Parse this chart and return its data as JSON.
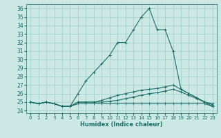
{
  "xlabel": "Humidex (Indice chaleur)",
  "xlim": [
    -0.5,
    23.5
  ],
  "ylim": [
    23.7,
    36.5
  ],
  "yticks": [
    24,
    25,
    26,
    27,
    28,
    29,
    30,
    31,
    32,
    33,
    34,
    35,
    36
  ],
  "xticks": [
    0,
    1,
    2,
    3,
    4,
    5,
    6,
    7,
    8,
    9,
    10,
    11,
    12,
    13,
    14,
    15,
    16,
    17,
    18,
    19,
    20,
    21,
    22,
    23
  ],
  "bg_color": "#cce8e4",
  "grid_color": "#aad4d0",
  "line_color": "#1a6e65",
  "lines": [
    {
      "x": [
        0,
        1,
        2,
        3,
        4,
        5,
        6,
        7,
        8,
        9,
        10,
        11,
        12,
        13,
        14,
        15,
        16,
        17,
        18,
        19,
        20,
        21,
        22,
        23
      ],
      "y": [
        25,
        24.8,
        25,
        24.8,
        24.5,
        24.5,
        26,
        27.5,
        28.5,
        29.5,
        30.5,
        32,
        32,
        33.5,
        35,
        36,
        33.5,
        33.5,
        31,
        26.5,
        26,
        25.5,
        25,
        24.5
      ]
    },
    {
      "x": [
        0,
        1,
        2,
        3,
        4,
        5,
        6,
        7,
        8,
        9,
        10,
        11,
        12,
        13,
        14,
        15,
        16,
        17,
        18,
        19,
        20,
        21,
        22,
        23
      ],
      "y": [
        25,
        24.8,
        25,
        24.8,
        24.5,
        24.5,
        25,
        25,
        25,
        25.2,
        25.5,
        25.8,
        26.0,
        26.2,
        26.4,
        26.5,
        26.6,
        26.8,
        27.0,
        26.5,
        26.0,
        25.5,
        25.0,
        24.8
      ]
    },
    {
      "x": [
        0,
        1,
        2,
        3,
        4,
        5,
        6,
        7,
        8,
        9,
        10,
        11,
        12,
        13,
        14,
        15,
        16,
        17,
        18,
        19,
        20,
        21,
        22,
        23
      ],
      "y": [
        25,
        24.8,
        25,
        24.8,
        24.5,
        24.5,
        25,
        25,
        25,
        25,
        25.1,
        25.2,
        25.4,
        25.6,
        25.8,
        26.0,
        26.1,
        26.3,
        26.5,
        26.2,
        25.8,
        25.4,
        25.0,
        24.7
      ]
    },
    {
      "x": [
        0,
        1,
        2,
        3,
        4,
        5,
        6,
        7,
        8,
        9,
        10,
        11,
        12,
        13,
        14,
        15,
        16,
        17,
        18,
        19,
        20,
        21,
        22,
        23
      ],
      "y": [
        25,
        24.8,
        25,
        24.8,
        24.5,
        24.5,
        24.8,
        24.8,
        24.8,
        24.8,
        24.8,
        24.8,
        24.8,
        24.8,
        24.8,
        24.8,
        24.8,
        24.8,
        24.8,
        24.8,
        24.8,
        24.8,
        24.8,
        24.5
      ]
    }
  ]
}
